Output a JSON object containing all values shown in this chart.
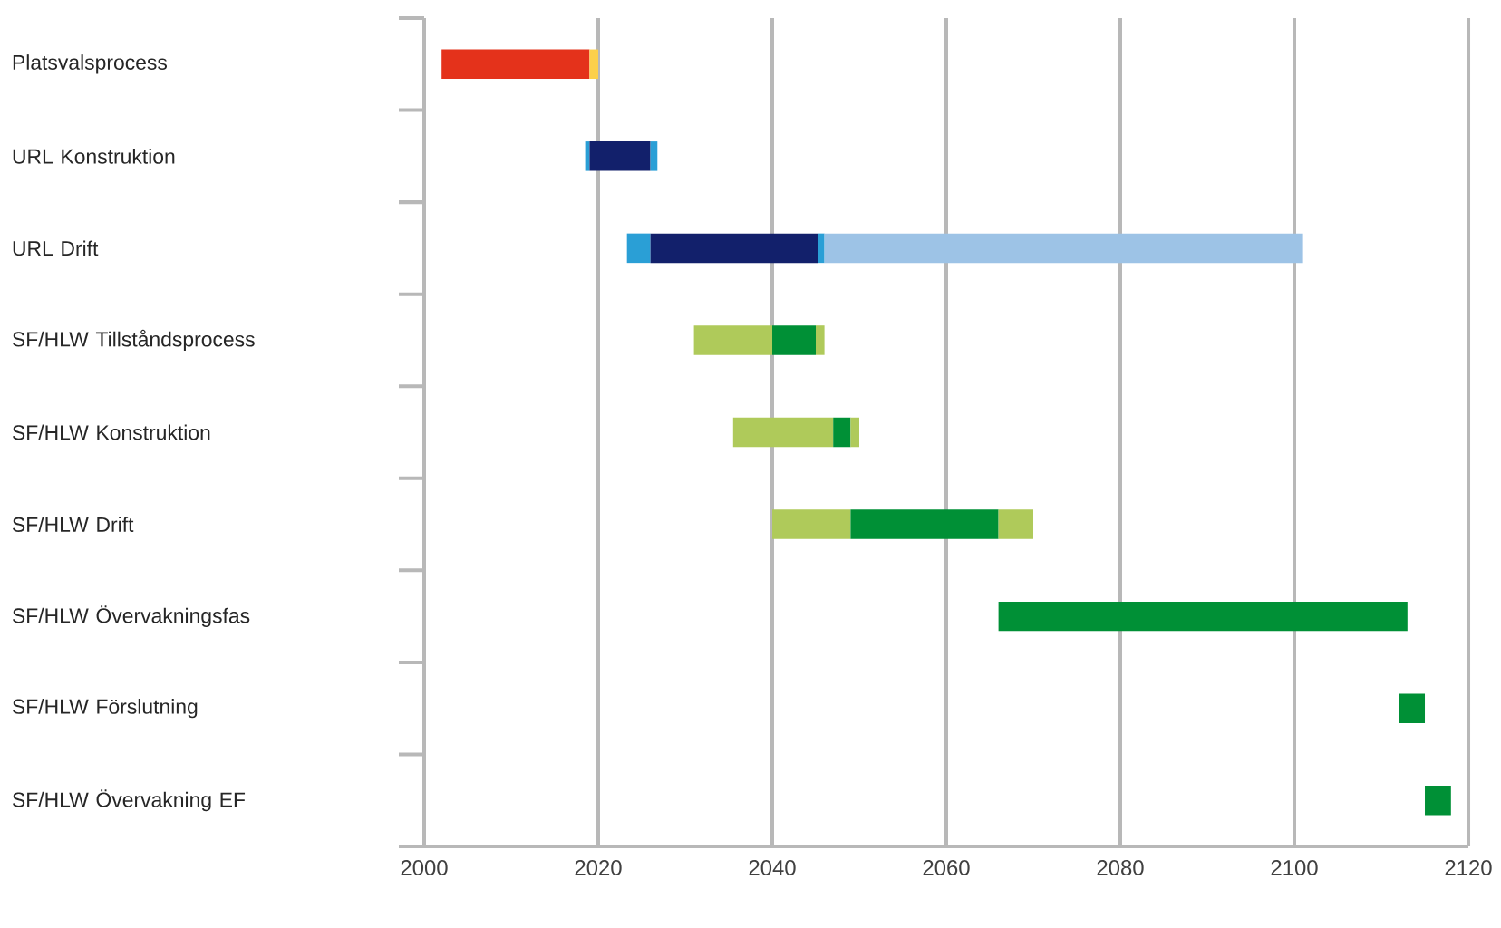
{
  "chart_data": {
    "type": "bar",
    "orientation": "horizontal",
    "categories": [
      "Platsvalsprocess",
      "URL Konstruktion",
      "URL Drift",
      "SF/HLW Tillståndsprocess",
      "SF/HLW Konstruktion",
      "SF/HLW Drift",
      "SF/HLW Övervakningsfas",
      "SF/HLW Förslutning",
      "SF/HLW Övervakning EF"
    ],
    "series": [
      {
        "base": [
          2002,
          2018.5,
          2023.3,
          2031,
          2035.5,
          2040,
          2066,
          2112,
          2115
        ],
        "values": [
          17,
          0.5,
          2.7,
          9,
          11.5,
          9,
          47,
          3,
          3
        ],
        "colors": [
          "#e4321b",
          "#2a9fd6",
          "#2a9fd6",
          "#afca5a",
          "#afca5a",
          "#afca5a",
          "#009036",
          "#009036",
          "#009036"
        ]
      },
      {
        "base": [
          2019,
          2019,
          2026,
          2040,
          2047,
          2049,
          null,
          null,
          null
        ],
        "values": [
          1,
          7,
          19.3,
          5,
          2,
          17,
          null,
          null,
          null
        ],
        "colors": [
          "#fcd04b",
          "#12206b",
          "#12206b",
          "#009036",
          "#009036",
          "#009036",
          null,
          null,
          null
        ]
      },
      {
        "base": [
          null,
          2026,
          2045.3,
          2045,
          2049,
          2066,
          null,
          null,
          null
        ],
        "values": [
          null,
          0.8,
          0.7,
          1,
          1,
          4,
          null,
          null,
          null
        ],
        "colors": [
          null,
          "#2a9fd6",
          "#2a9fd6",
          "#afca5a",
          "#afca5a",
          "#afca5a",
          null,
          null,
          null
        ]
      },
      {
        "base": [
          null,
          null,
          2046,
          null,
          null,
          null,
          null,
          null,
          null
        ],
        "values": [
          null,
          null,
          55,
          null,
          null,
          null,
          null,
          null,
          null
        ],
        "colors": [
          null,
          null,
          "#9dc3e6",
          null,
          null,
          null,
          null,
          null,
          null
        ]
      }
    ],
    "xlim": [
      2000,
      2120
    ],
    "xticks": [
      2000,
      2020,
      2040,
      2060,
      2080,
      2100,
      2120
    ],
    "grid": "x"
  }
}
